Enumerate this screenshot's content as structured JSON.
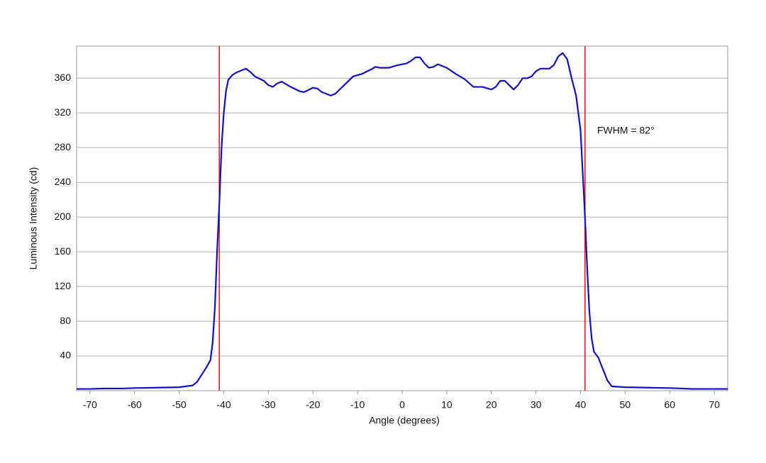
{
  "chart_data": {
    "type": "line",
    "xlabel": "Angle (degrees)",
    "ylabel": "Luminous Intensity (cd)",
    "annotation": "FWHM = 82°",
    "xlim": [
      -73,
      73
    ],
    "xticks": [
      -70,
      -60,
      -50,
      -40,
      -30,
      -20,
      -10,
      0,
      10,
      20,
      30,
      40,
      50,
      60,
      70
    ],
    "ylim": [
      0,
      397
    ],
    "yticks": [
      40,
      80,
      120,
      160,
      200,
      240,
      280,
      320,
      360
    ],
    "grid": true,
    "vlines": [
      -41,
      41
    ],
    "vline_color": "#e02020",
    "series": [
      {
        "color": "#1010c8",
        "x": [
          -73,
          -70,
          -67,
          -63,
          -60,
          -55,
          -50,
          -47,
          -46,
          -45,
          -44,
          -43,
          -42.5,
          -42,
          -41.5,
          -41,
          -40.5,
          -40,
          -39.5,
          -39,
          -38,
          -37,
          -36,
          -35,
          -34,
          -33,
          -31,
          -30,
          -29,
          -28,
          -27,
          -25,
          -23,
          -22,
          -20,
          -19,
          -18,
          -16,
          -15,
          -13,
          -11,
          -9,
          -7,
          -6,
          -5,
          -3,
          -1,
          0,
          1,
          2,
          3,
          4,
          5,
          6,
          7,
          8,
          10,
          12,
          14,
          16,
          18,
          20,
          21,
          22,
          23,
          24,
          25,
          26,
          27,
          28,
          29,
          30,
          31,
          33,
          34,
          35,
          36,
          37,
          38,
          39,
          40,
          40.5,
          41,
          41.5,
          42,
          42.5,
          43,
          44,
          45,
          46,
          47,
          50,
          55,
          60,
          63,
          65,
          70,
          73
        ],
        "values": [
          2,
          2,
          2.5,
          2.5,
          3,
          3.5,
          4,
          6,
          10,
          18,
          26,
          35,
          55,
          95,
          160,
          215,
          280,
          320,
          345,
          358,
          364,
          367,
          369,
          371,
          367,
          362,
          357,
          352,
          350,
          354,
          356,
          350,
          345,
          344,
          349,
          348,
          344,
          340,
          342,
          352,
          362,
          365,
          370,
          373,
          372,
          372,
          375,
          376,
          377,
          380,
          384,
          384,
          377,
          372,
          373,
          376,
          372,
          365,
          359,
          350,
          350,
          347,
          350,
          357,
          357,
          352,
          347,
          352,
          360,
          360,
          362,
          368,
          371,
          371,
          375,
          385,
          389,
          382,
          360,
          340,
          300,
          250,
          200,
          140,
          90,
          60,
          45,
          38,
          25,
          12,
          5,
          4,
          3.5,
          3,
          2.5,
          2,
          2,
          2
        ]
      }
    ]
  }
}
